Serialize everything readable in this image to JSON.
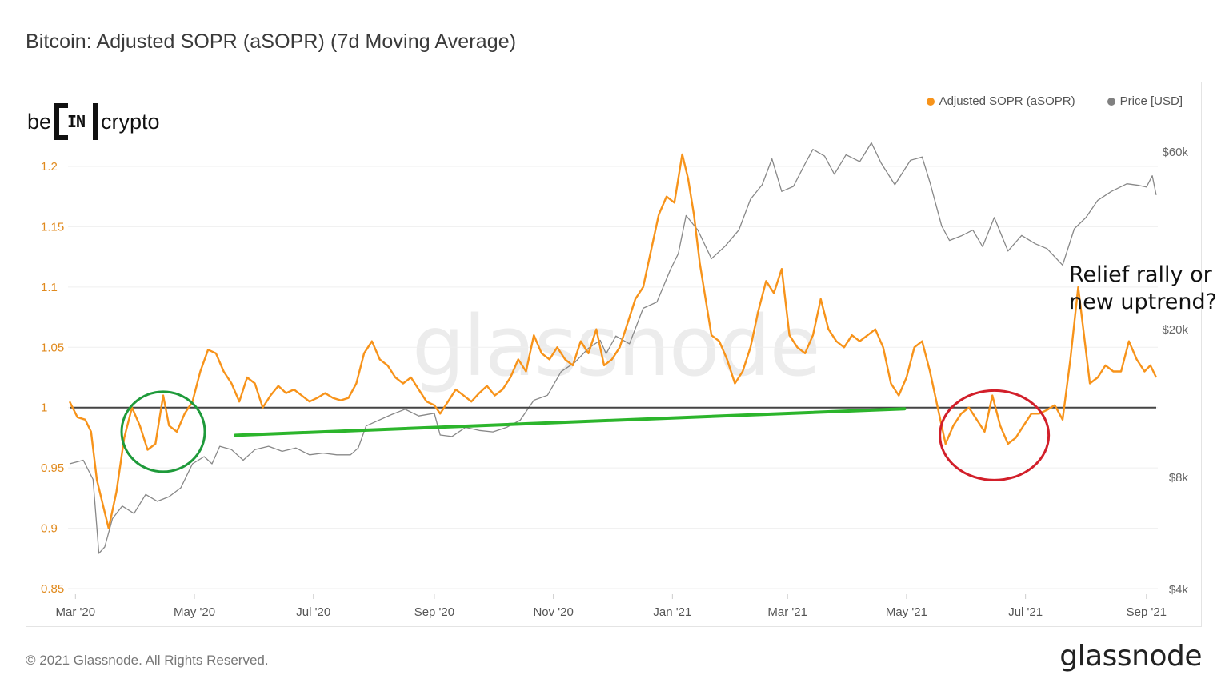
{
  "title": "Bitcoin: Adjusted SOPR (aSOPR) (7d Moving Average)",
  "brand_logo": {
    "left": "be",
    "mark": "IN",
    "right": "crypto"
  },
  "watermark": "glassnode",
  "legend": [
    {
      "label": "Adjusted SOPR (aSOPR)",
      "color": "#f7931a"
    },
    {
      "label": "Price [USD]",
      "color": "#808080"
    }
  ],
  "annotation": {
    "line1": "Relief rally or",
    "line2": "new uptrend?"
  },
  "copyright": "© 2021 Glassnode. All Rights Reserved.",
  "footer_logo": "glassnode",
  "chart_data": {
    "type": "line",
    "x_range": [
      "2020-02-27",
      "2021-09-06"
    ],
    "x_ticks": [
      {
        "label": "Mar '20",
        "date": "2020-03-01"
      },
      {
        "label": "May '20",
        "date": "2020-05-01"
      },
      {
        "label": "Jul '20",
        "date": "2020-07-01"
      },
      {
        "label": "Sep '20",
        "date": "2020-09-01"
      },
      {
        "label": "Nov '20",
        "date": "2020-11-01"
      },
      {
        "label": "Jan '21",
        "date": "2021-01-01"
      },
      {
        "label": "Mar '21",
        "date": "2021-03-01"
      },
      {
        "label": "May '21",
        "date": "2021-05-01"
      },
      {
        "label": "Jul '21",
        "date": "2021-07-01"
      },
      {
        "label": "Sep '21",
        "date": "2021-09-01"
      }
    ],
    "y_left": {
      "ticks": [
        0.85,
        0.9,
        0.95,
        1,
        1.05,
        1.1,
        1.15,
        1.2
      ],
      "tick_labels": [
        "0.85",
        "0.9",
        "0.95",
        "1",
        "1.05",
        "1.1",
        "1.15",
        "1.2"
      ],
      "range": [
        0.85,
        1.2
      ]
    },
    "y_right": {
      "scale": "log",
      "ticks": [
        4000,
        8000,
        20000,
        60000
      ],
      "tick_labels": [
        "$4k",
        "$8k",
        "$20k",
        "$60k"
      ],
      "range": [
        4000,
        60000
      ]
    },
    "reference_line": {
      "value": 1,
      "color": "#444444"
    },
    "grid": true,
    "series": [
      {
        "name": "Adjusted SOPR (aSOPR)",
        "axis": "left",
        "color": "#f7931a",
        "points": [
          [
            "2020-02-27",
            1.005
          ],
          [
            "2020-03-02",
            0.992
          ],
          [
            "2020-03-06",
            0.99
          ],
          [
            "2020-03-09",
            0.98
          ],
          [
            "2020-03-12",
            0.94
          ],
          [
            "2020-03-15",
            0.92
          ],
          [
            "2020-03-18",
            0.9
          ],
          [
            "2020-03-22",
            0.93
          ],
          [
            "2020-03-26",
            0.975
          ],
          [
            "2020-03-30",
            1.0
          ],
          [
            "2020-04-03",
            0.985
          ],
          [
            "2020-04-07",
            0.965
          ],
          [
            "2020-04-11",
            0.97
          ],
          [
            "2020-04-15",
            1.01
          ],
          [
            "2020-04-18",
            0.985
          ],
          [
            "2020-04-22",
            0.98
          ],
          [
            "2020-04-26",
            0.995
          ],
          [
            "2020-04-30",
            1.005
          ],
          [
            "2020-05-04",
            1.03
          ],
          [
            "2020-05-08",
            1.048
          ],
          [
            "2020-05-12",
            1.045
          ],
          [
            "2020-05-16",
            1.03
          ],
          [
            "2020-05-20",
            1.02
          ],
          [
            "2020-05-24",
            1.005
          ],
          [
            "2020-05-28",
            1.025
          ],
          [
            "2020-06-01",
            1.02
          ],
          [
            "2020-06-05",
            1.0
          ],
          [
            "2020-06-09",
            1.01
          ],
          [
            "2020-06-13",
            1.018
          ],
          [
            "2020-06-17",
            1.012
          ],
          [
            "2020-06-21",
            1.015
          ],
          [
            "2020-06-25",
            1.01
          ],
          [
            "2020-06-29",
            1.005
          ],
          [
            "2020-07-03",
            1.008
          ],
          [
            "2020-07-07",
            1.012
          ],
          [
            "2020-07-11",
            1.008
          ],
          [
            "2020-07-15",
            1.006
          ],
          [
            "2020-07-19",
            1.008
          ],
          [
            "2020-07-23",
            1.02
          ],
          [
            "2020-07-27",
            1.045
          ],
          [
            "2020-07-31",
            1.055
          ],
          [
            "2020-08-04",
            1.04
          ],
          [
            "2020-08-08",
            1.035
          ],
          [
            "2020-08-12",
            1.025
          ],
          [
            "2020-08-16",
            1.02
          ],
          [
            "2020-08-20",
            1.025
          ],
          [
            "2020-08-24",
            1.015
          ],
          [
            "2020-08-28",
            1.005
          ],
          [
            "2020-09-01",
            1.002
          ],
          [
            "2020-09-04",
            0.995
          ],
          [
            "2020-09-08",
            1.005
          ],
          [
            "2020-09-12",
            1.015
          ],
          [
            "2020-09-16",
            1.01
          ],
          [
            "2020-09-20",
            1.005
          ],
          [
            "2020-09-24",
            1.012
          ],
          [
            "2020-09-28",
            1.018
          ],
          [
            "2020-10-02",
            1.01
          ],
          [
            "2020-10-06",
            1.015
          ],
          [
            "2020-10-10",
            1.025
          ],
          [
            "2020-10-14",
            1.04
          ],
          [
            "2020-10-18",
            1.03
          ],
          [
            "2020-10-22",
            1.06
          ],
          [
            "2020-10-26",
            1.045
          ],
          [
            "2020-10-30",
            1.04
          ],
          [
            "2020-11-03",
            1.05
          ],
          [
            "2020-11-07",
            1.04
          ],
          [
            "2020-11-11",
            1.035
          ],
          [
            "2020-11-15",
            1.055
          ],
          [
            "2020-11-19",
            1.045
          ],
          [
            "2020-11-23",
            1.065
          ],
          [
            "2020-11-27",
            1.035
          ],
          [
            "2020-12-01",
            1.04
          ],
          [
            "2020-12-05",
            1.05
          ],
          [
            "2020-12-09",
            1.07
          ],
          [
            "2020-12-13",
            1.09
          ],
          [
            "2020-12-17",
            1.1
          ],
          [
            "2020-12-21",
            1.13
          ],
          [
            "2020-12-25",
            1.16
          ],
          [
            "2020-12-29",
            1.175
          ],
          [
            "2021-01-02",
            1.17
          ],
          [
            "2021-01-06",
            1.21
          ],
          [
            "2021-01-09",
            1.19
          ],
          [
            "2021-01-12",
            1.16
          ],
          [
            "2021-01-15",
            1.12
          ],
          [
            "2021-01-18",
            1.09
          ],
          [
            "2021-01-21",
            1.06
          ],
          [
            "2021-01-25",
            1.055
          ],
          [
            "2021-01-29",
            1.04
          ],
          [
            "2021-02-02",
            1.02
          ],
          [
            "2021-02-06",
            1.03
          ],
          [
            "2021-02-10",
            1.05
          ],
          [
            "2021-02-14",
            1.08
          ],
          [
            "2021-02-18",
            1.105
          ],
          [
            "2021-02-22",
            1.095
          ],
          [
            "2021-02-26",
            1.115
          ],
          [
            "2021-03-02",
            1.06
          ],
          [
            "2021-03-06",
            1.05
          ],
          [
            "2021-03-10",
            1.045
          ],
          [
            "2021-03-14",
            1.06
          ],
          [
            "2021-03-18",
            1.09
          ],
          [
            "2021-03-22",
            1.065
          ],
          [
            "2021-03-26",
            1.055
          ],
          [
            "2021-03-30",
            1.05
          ],
          [
            "2021-04-03",
            1.06
          ],
          [
            "2021-04-07",
            1.055
          ],
          [
            "2021-04-11",
            1.06
          ],
          [
            "2021-04-15",
            1.065
          ],
          [
            "2021-04-19",
            1.05
          ],
          [
            "2021-04-23",
            1.02
          ],
          [
            "2021-04-27",
            1.01
          ],
          [
            "2021-05-01",
            1.025
          ],
          [
            "2021-05-05",
            1.05
          ],
          [
            "2021-05-09",
            1.055
          ],
          [
            "2021-05-13",
            1.03
          ],
          [
            "2021-05-17",
            1.0
          ],
          [
            "2021-05-21",
            0.97
          ],
          [
            "2021-05-25",
            0.985
          ],
          [
            "2021-05-29",
            0.995
          ],
          [
            "2021-06-02",
            1.0
          ],
          [
            "2021-06-06",
            0.99
          ],
          [
            "2021-06-10",
            0.98
          ],
          [
            "2021-06-14",
            1.01
          ],
          [
            "2021-06-18",
            0.985
          ],
          [
            "2021-06-22",
            0.97
          ],
          [
            "2021-06-26",
            0.975
          ],
          [
            "2021-06-30",
            0.985
          ],
          [
            "2021-07-04",
            0.995
          ],
          [
            "2021-07-08",
            0.995
          ],
          [
            "2021-07-12",
            0.998
          ],
          [
            "2021-07-16",
            1.002
          ],
          [
            "2021-07-20",
            0.99
          ],
          [
            "2021-07-24",
            1.04
          ],
          [
            "2021-07-28",
            1.1
          ],
          [
            "2021-07-31",
            1.06
          ],
          [
            "2021-08-03",
            1.02
          ],
          [
            "2021-08-07",
            1.025
          ],
          [
            "2021-08-11",
            1.035
          ],
          [
            "2021-08-15",
            1.03
          ],
          [
            "2021-08-19",
            1.03
          ],
          [
            "2021-08-23",
            1.055
          ],
          [
            "2021-08-27",
            1.04
          ],
          [
            "2021-08-31",
            1.03
          ],
          [
            "2021-09-03",
            1.035
          ],
          [
            "2021-09-06",
            1.025
          ]
        ]
      },
      {
        "name": "Price [USD]",
        "axis": "right",
        "color": "#888888",
        "points": [
          [
            "2020-02-27",
            8700
          ],
          [
            "2020-03-05",
            8900
          ],
          [
            "2020-03-10",
            7900
          ],
          [
            "2020-03-13",
            5000
          ],
          [
            "2020-03-16",
            5200
          ],
          [
            "2020-03-20",
            6200
          ],
          [
            "2020-03-25",
            6700
          ],
          [
            "2020-03-31",
            6400
          ],
          [
            "2020-04-06",
            7200
          ],
          [
            "2020-04-12",
            6900
          ],
          [
            "2020-04-18",
            7100
          ],
          [
            "2020-04-24",
            7500
          ],
          [
            "2020-04-30",
            8700
          ],
          [
            "2020-05-06",
            9100
          ],
          [
            "2020-05-10",
            8700
          ],
          [
            "2020-05-14",
            9700
          ],
          [
            "2020-05-20",
            9500
          ],
          [
            "2020-05-26",
            8900
          ],
          [
            "2020-06-01",
            9500
          ],
          [
            "2020-06-08",
            9700
          ],
          [
            "2020-06-15",
            9400
          ],
          [
            "2020-06-22",
            9600
          ],
          [
            "2020-06-29",
            9200
          ],
          [
            "2020-07-06",
            9300
          ],
          [
            "2020-07-13",
            9200
          ],
          [
            "2020-07-20",
            9200
          ],
          [
            "2020-07-24",
            9600
          ],
          [
            "2020-07-28",
            11000
          ],
          [
            "2020-08-02",
            11300
          ],
          [
            "2020-08-10",
            11800
          ],
          [
            "2020-08-17",
            12200
          ],
          [
            "2020-08-24",
            11700
          ],
          [
            "2020-09-01",
            11900
          ],
          [
            "2020-09-04",
            10400
          ],
          [
            "2020-09-10",
            10300
          ],
          [
            "2020-09-17",
            10900
          ],
          [
            "2020-09-24",
            10700
          ],
          [
            "2020-10-01",
            10600
          ],
          [
            "2020-10-08",
            10900
          ],
          [
            "2020-10-15",
            11400
          ],
          [
            "2020-10-22",
            12900
          ],
          [
            "2020-10-29",
            13300
          ],
          [
            "2020-11-05",
            15400
          ],
          [
            "2020-11-12",
            16300
          ],
          [
            "2020-11-19",
            17800
          ],
          [
            "2020-11-25",
            18700
          ],
          [
            "2020-11-28",
            17200
          ],
          [
            "2020-12-03",
            19200
          ],
          [
            "2020-12-10",
            18300
          ],
          [
            "2020-12-17",
            22800
          ],
          [
            "2020-12-24",
            23700
          ],
          [
            "2020-12-31",
            29000
          ],
          [
            "2021-01-04",
            32000
          ],
          [
            "2021-01-08",
            40500
          ],
          [
            "2021-01-14",
            37000
          ],
          [
            "2021-01-21",
            31000
          ],
          [
            "2021-01-28",
            33500
          ],
          [
            "2021-02-04",
            37000
          ],
          [
            "2021-02-10",
            44800
          ],
          [
            "2021-02-16",
            49000
          ],
          [
            "2021-02-21",
            57500
          ],
          [
            "2021-02-26",
            47000
          ],
          [
            "2021-03-04",
            48500
          ],
          [
            "2021-03-10",
            55800
          ],
          [
            "2021-03-14",
            61000
          ],
          [
            "2021-03-20",
            58500
          ],
          [
            "2021-03-25",
            52300
          ],
          [
            "2021-03-31",
            59000
          ],
          [
            "2021-04-07",
            56500
          ],
          [
            "2021-04-13",
            63500
          ],
          [
            "2021-04-18",
            56000
          ],
          [
            "2021-04-25",
            49000
          ],
          [
            "2021-05-03",
            57000
          ],
          [
            "2021-05-09",
            58200
          ],
          [
            "2021-05-13",
            49700
          ],
          [
            "2021-05-19",
            38000
          ],
          [
            "2021-05-23",
            34700
          ],
          [
            "2021-05-29",
            35700
          ],
          [
            "2021-06-04",
            37000
          ],
          [
            "2021-06-09",
            33400
          ],
          [
            "2021-06-15",
            40000
          ],
          [
            "2021-06-22",
            32500
          ],
          [
            "2021-06-29",
            35800
          ],
          [
            "2021-07-06",
            34000
          ],
          [
            "2021-07-12",
            33000
          ],
          [
            "2021-07-20",
            29800
          ],
          [
            "2021-07-26",
            37300
          ],
          [
            "2021-08-01",
            40000
          ],
          [
            "2021-08-07",
            44500
          ],
          [
            "2021-08-14",
            47000
          ],
          [
            "2021-08-22",
            49300
          ],
          [
            "2021-08-28",
            48800
          ],
          [
            "2021-09-01",
            48300
          ],
          [
            "2021-09-04",
            51800
          ],
          [
            "2021-09-06",
            46000
          ]
        ]
      }
    ],
    "annotation_shapes": [
      {
        "type": "ellipse",
        "color": "#1e9a3a",
        "center": [
          "2020-04-15",
          0.98
        ]
      },
      {
        "type": "ellipse",
        "color": "#d21f2a",
        "center": [
          "2021-06-15",
          0.977
        ]
      },
      {
        "type": "trendline",
        "color": "#2cb52c",
        "from": [
          "2020-05-22",
          0.977
        ],
        "to": [
          "2021-04-30",
          0.999
        ]
      }
    ]
  }
}
